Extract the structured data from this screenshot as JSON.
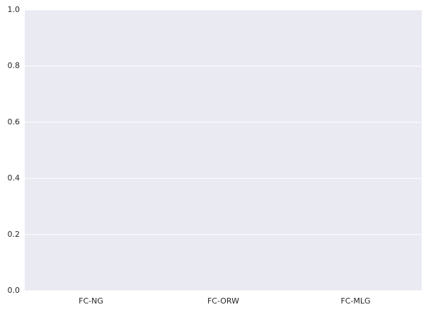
{
  "chart_data": {
    "type": "bar",
    "categories": [
      "FC-NG",
      "FC-ORW",
      "FC-MLG"
    ],
    "ylim": [
      0,
      1
    ],
    "yticks": [
      {
        "value": 0,
        "label": "0.0"
      },
      0.2,
      0.4,
      0.6,
      0.8,
      {
        "value": 1,
        "label": "1.0"
      }
    ],
    "grid": true,
    "background": "#eaeaf2",
    "grid_color": "#ffffff"
  }
}
